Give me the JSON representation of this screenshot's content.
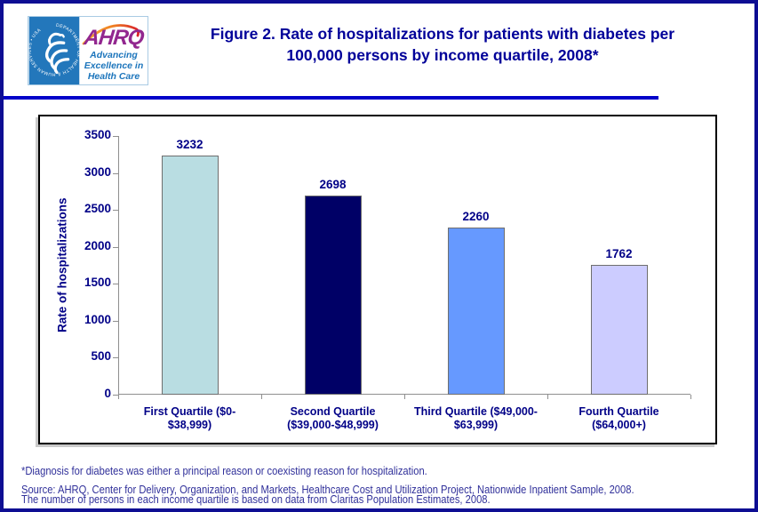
{
  "header": {
    "logo": {
      "hhs_seal_text": "DEPARTMENT OF HEALTH & HUMAN SERVICES • USA",
      "acronym": "AHRQ",
      "tagline_lines": [
        "Advancing",
        "Excellence in",
        "Health Care"
      ]
    },
    "title_line1": "Figure 2. Rate of hospitalizations for patients with diabetes per",
    "title_line2": "100,000 persons by income quartile, 2008*"
  },
  "chart_data": {
    "type": "bar",
    "title": "Figure 2. Rate of hospitalizations for patients with diabetes per 100,000 persons by income quartile, 2008*",
    "categories": [
      "First Quartile ($0-$38,999)",
      "Second Quartile ($39,000-$48,999)",
      "Third Quartile ($49,000-$63,999)",
      "Fourth Quartile ($64,000+)"
    ],
    "category_label_lines": [
      [
        "First Quartile ($0-",
        "$38,999)"
      ],
      [
        "Second Quartile",
        "($39,000-$48,999)"
      ],
      [
        "Third Quartile ($49,000-",
        "$63,999)"
      ],
      [
        "Fourth Quartile",
        "($64,000+)"
      ]
    ],
    "values": [
      3232,
      2698,
      2260,
      1762
    ],
    "bar_colors": [
      "#b9dde2",
      "#000066",
      "#6699ff",
      "#ccccff"
    ],
    "xlabel": "",
    "ylabel": "Rate of hospitalizations",
    "ylim": [
      0,
      3500
    ],
    "ytick_step": 500,
    "grid": false,
    "legend": "none",
    "data_labels": true
  },
  "footnotes": [
    "*Diagnosis for diabetes was either a principal reason or coexisting reason for hospitalization.",
    "Source: AHRQ, Center for Delivery, Organization, and Markets, Healthcare Cost and Utilization Project, Nationwide Inpatient Sample, 2008.",
    "The number of persons in each income quartile is based on data from Claritas Population Estimates, 2008."
  ],
  "colors": {
    "title_text": "#000099",
    "chart_text": "#000087",
    "separator": "#0101c9",
    "page_border": "#0e0e93",
    "axis_line": "#8f8f8f",
    "hhs_blue": "#2377bb",
    "ahrq_purple": "#92278f",
    "tagline_blue": "#1c75bc"
  }
}
